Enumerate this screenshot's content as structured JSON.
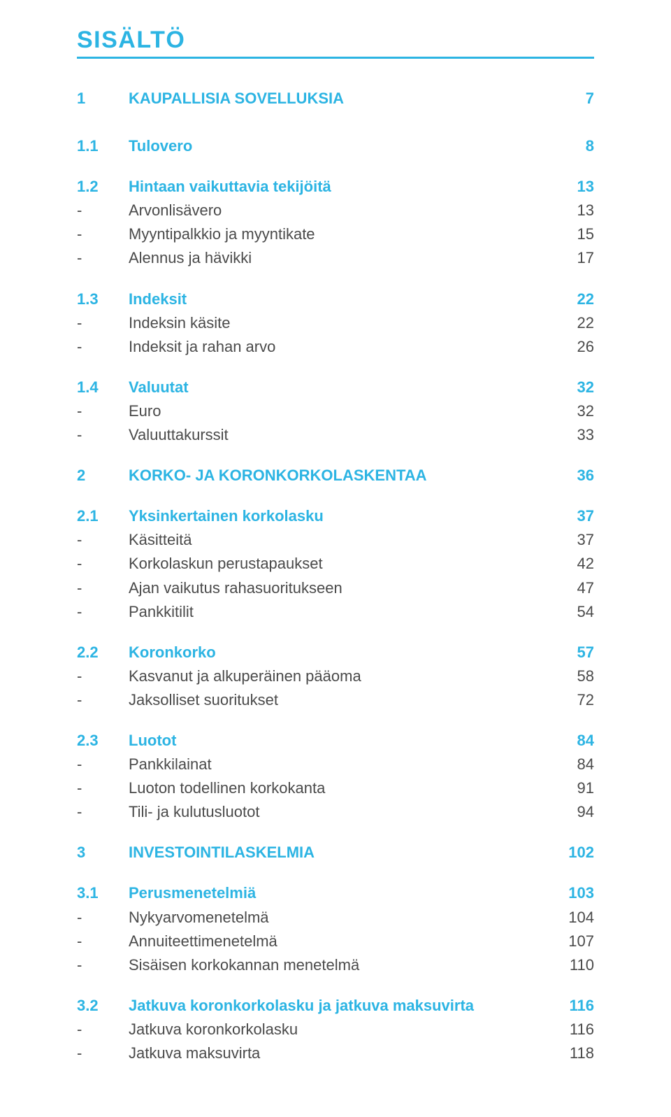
{
  "colors": {
    "blue": "#2cb4e3",
    "black": "#4a4a4a",
    "rule": "#2cb4e3",
    "background": "#ffffff"
  },
  "title": "SISÄLTÖ",
  "toc": [
    {
      "kind": "chapter",
      "num": "1",
      "label": "KAUPALLISIA SOVELLUKSIA",
      "page": "7",
      "gap_before": "none"
    },
    {
      "kind": "section",
      "num": "1.1",
      "label": "Tulovero",
      "page": "8",
      "gap_before": "lg"
    },
    {
      "kind": "section",
      "num": "1.2",
      "label": "Hintaan vaikuttavia tekijöitä",
      "page": "13",
      "gap_before": "md"
    },
    {
      "kind": "item",
      "num": "-",
      "label": "Arvonlisävero",
      "page": "13"
    },
    {
      "kind": "item",
      "num": "-",
      "label": "Myyntipalkkio ja myyntikate",
      "page": "15"
    },
    {
      "kind": "item",
      "num": "-",
      "label": "Alennus ja hävikki",
      "page": "17"
    },
    {
      "kind": "section",
      "num": "1.3",
      "label": "Indeksit",
      "page": "22",
      "gap_before": "md"
    },
    {
      "kind": "item",
      "num": "-",
      "label": "Indeksin käsite",
      "page": "22"
    },
    {
      "kind": "item",
      "num": "-",
      "label": "Indeksit ja rahan arvo",
      "page": "26"
    },
    {
      "kind": "section",
      "num": "1.4",
      "label": "Valuutat",
      "page": "32",
      "gap_before": "md"
    },
    {
      "kind": "item",
      "num": "-",
      "label": "Euro",
      "page": "32"
    },
    {
      "kind": "item",
      "num": "-",
      "label": "Valuuttakurssit",
      "page": "33"
    },
    {
      "kind": "chapter",
      "num": "2",
      "label": "KORKO- JA KORONKORKOLASKENTAA",
      "page": "36",
      "gap_before": "md"
    },
    {
      "kind": "section",
      "num": "2.1",
      "label": "Yksinkertainen korkolasku",
      "page": "37",
      "gap_before": "md"
    },
    {
      "kind": "item",
      "num": "-",
      "label": "Käsitteitä",
      "page": "37"
    },
    {
      "kind": "item",
      "num": "-",
      "label": "Korkolaskun perustapaukset",
      "page": "42"
    },
    {
      "kind": "item",
      "num": "-",
      "label": "Ajan vaikutus rahasuoritukseen",
      "page": "47"
    },
    {
      "kind": "item",
      "num": "-",
      "label": "Pankkitilit",
      "page": "54"
    },
    {
      "kind": "section",
      "num": "2.2",
      "label": "Koronkorko",
      "page": "57",
      "gap_before": "md"
    },
    {
      "kind": "item",
      "num": "-",
      "label": "Kasvanut ja alkuperäinen pääoma",
      "page": "58"
    },
    {
      "kind": "item",
      "num": "-",
      "label": "Jaksolliset suoritukset",
      "page": "72"
    },
    {
      "kind": "section",
      "num": "2.3",
      "label": "Luotot",
      "page": "84",
      "gap_before": "md"
    },
    {
      "kind": "item",
      "num": "-",
      "label": "Pankkilainat",
      "page": "84"
    },
    {
      "kind": "item",
      "num": "-",
      "label": "Luoton todellinen korkokanta",
      "page": "91"
    },
    {
      "kind": "item",
      "num": "-",
      "label": "Tili- ja kulutusluotot",
      "page": "94"
    },
    {
      "kind": "chapter",
      "num": "3",
      "label": "INVESTOINTILASKELMIA",
      "page": "102",
      "gap_before": "md"
    },
    {
      "kind": "section",
      "num": "3.1",
      "label": "Perusmenetelmiä",
      "page": "103",
      "gap_before": "md"
    },
    {
      "kind": "item",
      "num": "-",
      "label": "Nykyarvomenetelmä",
      "page": "104"
    },
    {
      "kind": "item",
      "num": "-",
      "label": "Annuiteettimenetelmä",
      "page": "107"
    },
    {
      "kind": "item",
      "num": "-",
      "label": "Sisäisen korkokannan menetelmä",
      "page": "110"
    },
    {
      "kind": "section",
      "num": "3.2",
      "label": "Jatkuva koronkorkolasku ja jatkuva maksuvirta",
      "page": "116",
      "gap_before": "md"
    },
    {
      "kind": "item",
      "num": "-",
      "label": "Jatkuva koronkorkolasku",
      "page": "116"
    },
    {
      "kind": "item",
      "num": "-",
      "label": "Jatkuva maksuvirta",
      "page": "118"
    }
  ]
}
